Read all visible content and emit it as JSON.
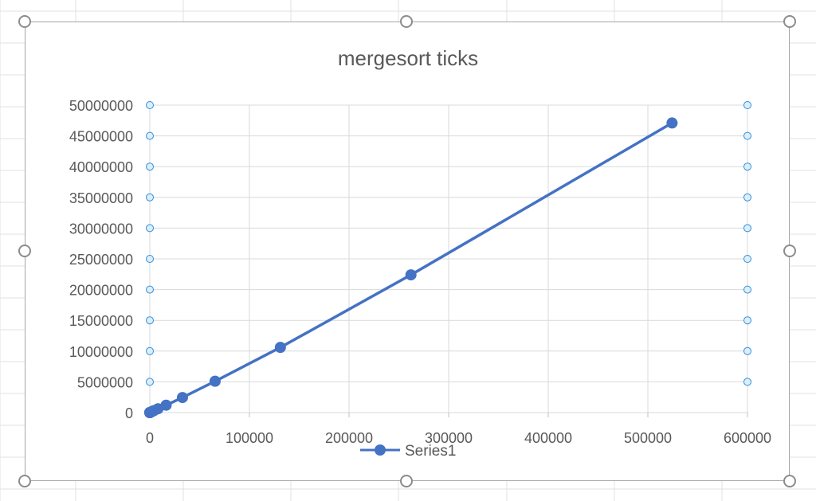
{
  "chart_data": {
    "type": "scatter",
    "title": "mergesort ticks",
    "xlabel": "",
    "ylabel": "",
    "xlim": [
      0,
      600000
    ],
    "ylim": [
      0,
      50000000
    ],
    "x_ticks": [
      0,
      100000,
      200000,
      300000,
      400000,
      500000,
      600000
    ],
    "y_ticks": [
      0,
      5000000,
      10000000,
      15000000,
      20000000,
      25000000,
      30000000,
      35000000,
      40000000,
      45000000,
      50000000
    ],
    "grid": true,
    "legend_position": "bottom",
    "lines": true,
    "markers": true,
    "series": [
      {
        "name": "Series1",
        "color": "#4472C4",
        "x": [
          2,
          4,
          8,
          16,
          32,
          64,
          128,
          256,
          512,
          1024,
          2048,
          4096,
          8192,
          16384,
          32768,
          65536,
          131072,
          262144,
          524288
        ],
        "y": [
          0,
          0,
          0,
          0,
          0,
          5000,
          10000,
          20000,
          40000,
          80000,
          160000,
          320000,
          620000,
          1200000,
          2450000,
          5100000,
          10600000,
          22400000,
          47100000
        ]
      }
    ]
  }
}
